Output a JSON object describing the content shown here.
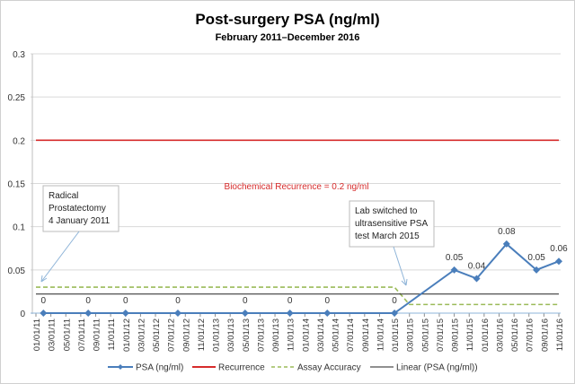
{
  "chart_data": {
    "type": "line",
    "title": "Post-surgery PSA (ng/ml)",
    "subtitle": "February 2011–December 2016",
    "xlabel": "",
    "ylabel": "",
    "xlim": [
      "2011-01-01",
      "2016-11-01"
    ],
    "ylim": [
      0,
      0.3
    ],
    "y_ticks": [
      "0",
      "0.05",
      "0.1",
      "0.15",
      "0.2",
      "0.25",
      "0.3"
    ],
    "x_ticks": [
      "01/01/11",
      "03/01/11",
      "05/01/11",
      "07/01/11",
      "09/01/11",
      "11/01/11",
      "01/01/12",
      "03/01/12",
      "05/01/12",
      "07/01/12",
      "09/01/12",
      "11/01/12",
      "01/01/13",
      "03/01/13",
      "05/01/13",
      "07/01/13",
      "09/01/13",
      "11/01/13",
      "01/01/14",
      "03/01/14",
      "05/01/14",
      "07/01/14",
      "09/01/14",
      "11/01/14",
      "01/01/15",
      "03/01/15",
      "05/01/15",
      "07/01/15",
      "09/01/15",
      "11/01/15",
      "01/01/16",
      "03/01/16",
      "05/01/16",
      "07/01/16",
      "09/01/16",
      "11/01/16"
    ],
    "grid": true,
    "legend_position": "bottom",
    "series": [
      {
        "name": "PSA (ng/ml)",
        "color": "#4a7ebb",
        "marker": "diamond",
        "x": [
          "2011-02-01",
          "2011-08-01",
          "2012-01-01",
          "2012-08-01",
          "2013-05-01",
          "2013-11-01",
          "2014-04-01",
          "2015-01-01",
          "2015-09-01",
          "2015-12-01",
          "2016-04-01",
          "2016-08-01",
          "2016-11-01"
        ],
        "values": [
          0,
          0,
          0,
          0,
          0,
          0,
          0,
          0,
          0.05,
          0.04,
          0.08,
          0.05,
          0.06
        ],
        "labels": [
          "0",
          "0",
          "0",
          "0",
          "0",
          "0",
          "0",
          "0",
          "0.05",
          "0.04",
          "0.08",
          "0.05",
          "0.06"
        ]
      },
      {
        "name": "Recurrence",
        "color": "#d62b2b",
        "x": [
          "2011-01-01",
          "2016-11-01"
        ],
        "values": [
          0.2,
          0.2
        ]
      },
      {
        "name": "Assay Accuracy",
        "color": "#9bbb59",
        "dash": true,
        "x": [
          "2011-01-01",
          "2015-01-01",
          "2015-03-01",
          "2016-11-01"
        ],
        "values": [
          0.03,
          0.03,
          0.01,
          0.01
        ]
      },
      {
        "name": "Linear (PSA (ng/ml))",
        "color": "#222222",
        "x": [
          "2011-01-01",
          "2016-11-01"
        ],
        "values": [
          0.022,
          0.022
        ]
      }
    ],
    "annotations": {
      "recurrence": "Biochemical  Recurrence = 0.2 ng/ml",
      "surgery": [
        "Radical",
        "Prostatectomy",
        "4 January 2011"
      ],
      "lab": [
        "Lab switched to",
        "ultrasensitive PSA",
        "test March 2015"
      ]
    }
  }
}
